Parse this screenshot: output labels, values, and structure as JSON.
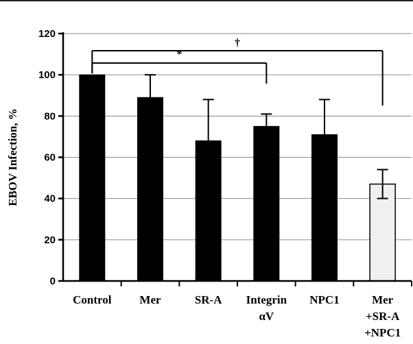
{
  "chart_data": {
    "type": "bar",
    "title": "",
    "xlabel": "",
    "ylabel": "EBOV Infection, %",
    "ylim": [
      0,
      120
    ],
    "yticks": [
      "0",
      "20",
      "40",
      "60",
      "80",
      "100",
      "120"
    ],
    "grid": true,
    "categories": [
      [
        "Control"
      ],
      [
        "Mer"
      ],
      [
        "SR-A"
      ],
      [
        "Integrin",
        "αV"
      ],
      [
        "NPC1"
      ],
      [
        "Mer",
        "+SR-A",
        "+NPC1"
      ]
    ],
    "values": [
      100,
      89,
      68,
      75,
      71,
      47
    ],
    "errors": [
      0,
      11,
      20,
      6,
      17,
      7
    ],
    "bar_colors": [
      "#000000",
      "#000000",
      "#000000",
      "#000000",
      "#000000",
      "#f0f0f0"
    ],
    "significance": [
      {
        "label": "†",
        "from": 0,
        "to": 5
      },
      {
        "label": "*",
        "from": 0,
        "to": 3
      }
    ]
  }
}
